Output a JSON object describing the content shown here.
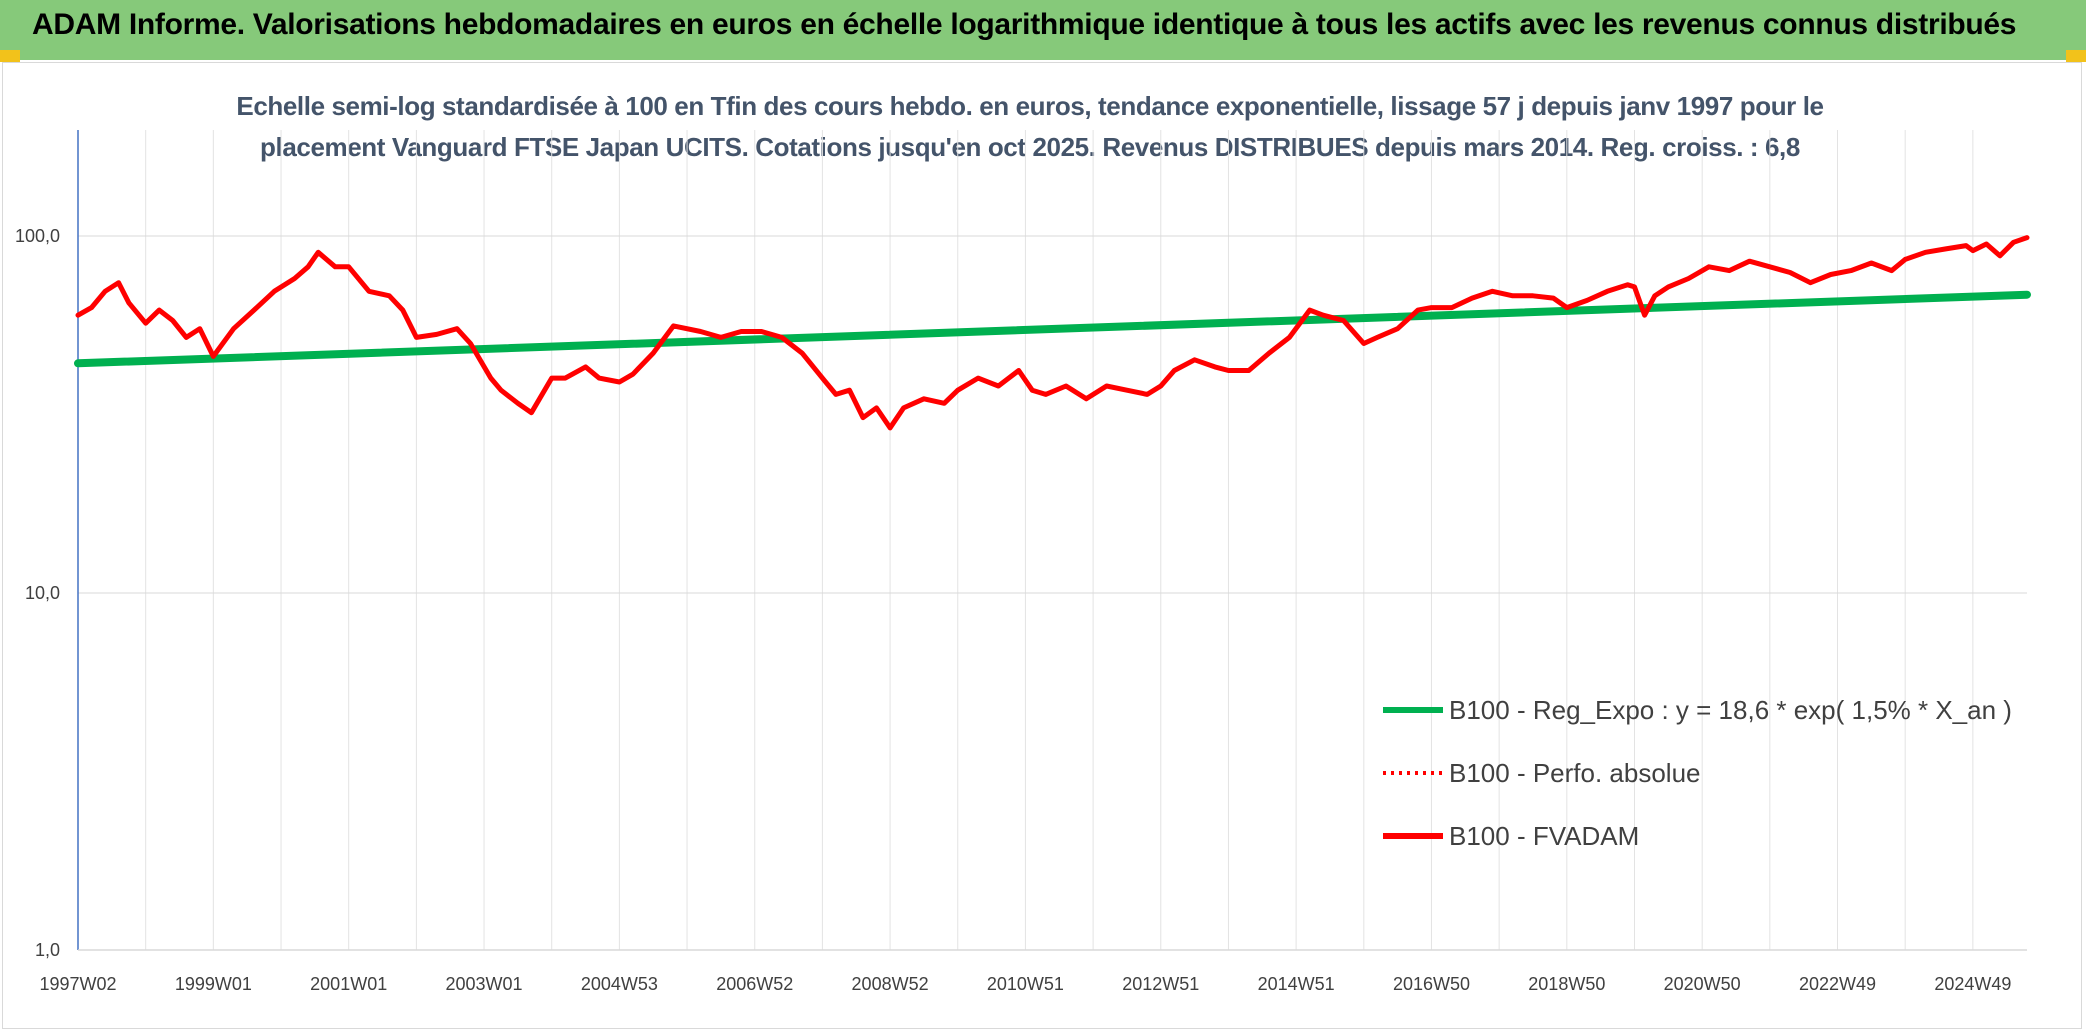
{
  "header": {
    "title": "ADAM Informe. Valorisations hebdomadaires en euros en échelle logarithmique identique à tous les actifs avec les revenus connus distribués"
  },
  "chart_data": {
    "type": "line",
    "title_lines": [
      "Echelle semi-log standardisée à 100 en Tfin des cours hebdo. en euros, tendance exponentielle, lissage 57 j depuis janv 1997 pour le",
      "placement Vanguard FTSE Japan UCITS. Cotations jusqu'en oct 2025. Revenus DISTRIBUES depuis mars 2014. Reg. croiss. : 6,8"
    ],
    "y_scale": "log",
    "ylim": [
      1,
      200
    ],
    "y_ticks": [
      {
        "value": 1,
        "label": "1,0"
      },
      {
        "value": 10,
        "label": "10,0"
      },
      {
        "value": 100,
        "label": "100,0"
      }
    ],
    "xlim": [
      1997.0,
      2025.8
    ],
    "x_ticks": [
      {
        "value": 1997.0,
        "label": "1997W02"
      },
      {
        "value": 1999.0,
        "label": "1999W01"
      },
      {
        "value": 2001.0,
        "label": "2001W01"
      },
      {
        "value": 2003.0,
        "label": "2003W01"
      },
      {
        "value": 2005.0,
        "label": "2004W53"
      },
      {
        "value": 2007.0,
        "label": "2006W52"
      },
      {
        "value": 2009.0,
        "label": "2008W52"
      },
      {
        "value": 2011.0,
        "label": "2010W51"
      },
      {
        "value": 2013.0,
        "label": "2012W51"
      },
      {
        "value": 2015.0,
        "label": "2014W51"
      },
      {
        "value": 2017.0,
        "label": "2016W50"
      },
      {
        "value": 2019.0,
        "label": "2018W50"
      },
      {
        "value": 2021.0,
        "label": "2020W50"
      },
      {
        "value": 2023.0,
        "label": "2022W49"
      },
      {
        "value": 2025.0,
        "label": "2024W49"
      }
    ],
    "grid": true,
    "legend_position": "right",
    "series": [
      {
        "name": "B100 - Reg_Expo : y = 18,6 * exp( 1,5% *  X_an )",
        "color": "#00b050",
        "style": "solid",
        "x": [
          1997.0,
          2025.8
        ],
        "y": [
          44.0,
          68.5
        ]
      },
      {
        "name": "B100 - Perfo. absolue",
        "color": "#ff0000",
        "style": "dotted",
        "x": [],
        "y": []
      },
      {
        "name": "B100 - FVADAM",
        "color": "#ff0000",
        "style": "solid",
        "x": [
          1997.0,
          1997.2,
          1997.4,
          1997.6,
          1997.75,
          1998.0,
          1998.2,
          1998.4,
          1998.6,
          1998.8,
          1999.0,
          1999.3,
          1999.6,
          1999.9,
          2000.2,
          2000.4,
          2000.55,
          2000.8,
          2001.0,
          2001.3,
          2001.6,
          2001.8,
          2002.0,
          2002.3,
          2002.6,
          2002.8,
          2003.1,
          2003.25,
          2003.5,
          2003.7,
          2004.0,
          2004.2,
          2004.5,
          2004.7,
          2005.0,
          2005.2,
          2005.5,
          2005.8,
          2006.2,
          2006.5,
          2006.8,
          2007.1,
          2007.4,
          2007.7,
          2008.0,
          2008.2,
          2008.4,
          2008.6,
          2008.8,
          2009.0,
          2009.2,
          2009.5,
          2009.8,
          2010.0,
          2010.3,
          2010.6,
          2010.9,
          2011.1,
          2011.3,
          2011.6,
          2011.9,
          2012.2,
          2012.5,
          2012.8,
          2013.0,
          2013.2,
          2013.5,
          2013.8,
          2014.0,
          2014.3,
          2014.6,
          2014.9,
          2015.2,
          2015.4,
          2015.7,
          2016.0,
          2016.2,
          2016.5,
          2016.8,
          2017.0,
          2017.3,
          2017.6,
          2017.9,
          2018.2,
          2018.5,
          2018.8,
          2019.0,
          2019.3,
          2019.6,
          2019.9,
          2020.0,
          2020.15,
          2020.3,
          2020.5,
          2020.8,
          2021.1,
          2021.4,
          2021.7,
          2022.0,
          2022.3,
          2022.6,
          2022.9,
          2023.2,
          2023.5,
          2023.8,
          2024.0,
          2024.3,
          2024.6,
          2024.9,
          2025.0,
          2025.2,
          2025.4,
          2025.6,
          2025.8
        ],
        "y": [
          60,
          63,
          70,
          74,
          65,
          57,
          62,
          58,
          52,
          55,
          46,
          55,
          62,
          70,
          76,
          82,
          90,
          82,
          82,
          70,
          68,
          62,
          52,
          53,
          55,
          50,
          40,
          37,
          34,
          32,
          40,
          40,
          43,
          40,
          39,
          41,
          47,
          56,
          54,
          52,
          54,
          54,
          52,
          47,
          40,
          36,
          37,
          31,
          33,
          29,
          33,
          35,
          34,
          37,
          40,
          38,
          42,
          37,
          36,
          38,
          35,
          38,
          37,
          36,
          38,
          42,
          45,
          43,
          42,
          42,
          47,
          52,
          62,
          60,
          58,
          50,
          52,
          55,
          62,
          63,
          63,
          67,
          70,
          68,
          68,
          67,
          63,
          66,
          70,
          73,
          72,
          60,
          68,
          72,
          76,
          82,
          80,
          85,
          82,
          79,
          74,
          78,
          80,
          84,
          80,
          86,
          90,
          92,
          94,
          91,
          95,
          88,
          96,
          99
        ]
      }
    ],
    "legend": [
      {
        "label": "B100 - Reg_Expo : y = 18,6 * exp( 1,5% *  X_an )",
        "color": "#00b050",
        "style": "solid"
      },
      {
        "label": "B100 - Perfo. absolue",
        "color": "#ff0000",
        "style": "dotted"
      },
      {
        "label": "B100 - FVADAM",
        "color": "#ff0000",
        "style": "solid"
      }
    ]
  }
}
